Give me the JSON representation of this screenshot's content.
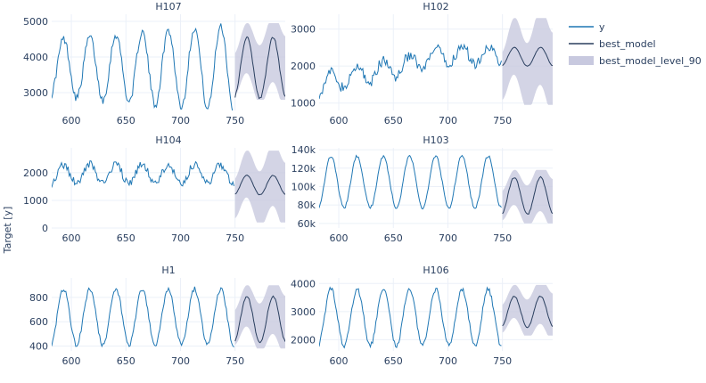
{
  "figure": {
    "ylabel": "Target [y]",
    "legend": [
      {
        "label": "y",
        "kind": "line",
        "color": "#1f77b4"
      },
      {
        "label": "best_model",
        "kind": "line",
        "color": "#2a3f5f"
      },
      {
        "label": "best_model_level_90",
        "kind": "band",
        "color": "#c8c9df"
      }
    ]
  },
  "chart_data": [
    {
      "type": "line",
      "title": "H107",
      "xlim": [
        582,
        796
      ],
      "ylim": [
        2500,
        5200
      ],
      "xticks": [
        600,
        650,
        700,
        750
      ],
      "yticks": [
        3000,
        4000,
        5000
      ],
      "ytick_labels": [
        "3000",
        "4000",
        "5000"
      ],
      "history": {
        "x_start": 582,
        "x_end": 749,
        "mid": 3700,
        "amp": 1000,
        "amp_growth": 0.45,
        "noise": 120
      },
      "forecast": {
        "x_start": 750,
        "x_end": 796,
        "mid": 3700,
        "amp": 850,
        "band_lo": 2800,
        "band_hi": 4950
      },
      "period": 24
    },
    {
      "type": "line",
      "title": "H102",
      "xlim": [
        582,
        796
      ],
      "ylim": [
        800,
        3400
      ],
      "xticks": [
        600,
        650,
        700,
        750
      ],
      "yticks": [
        1000,
        2000,
        3000
      ],
      "ytick_labels": [
        "1000",
        "2000",
        "3000"
      ],
      "history": {
        "x_start": 582,
        "x_end": 749,
        "mid": 1500,
        "amp": 250,
        "trend_end": 2300,
        "noise": 150
      },
      "forecast": {
        "x_start": 750,
        "x_end": 796,
        "mid": 2250,
        "amp": 250,
        "band_lo": 950,
        "band_hi": 3300
      },
      "period": 24
    },
    {
      "type": "line",
      "title": "H104",
      "xlim": [
        582,
        796
      ],
      "ylim": [
        0,
        2900
      ],
      "xticks": [
        600,
        650,
        700,
        750
      ],
      "yticks": [
        0,
        1000,
        2000
      ],
      "ytick_labels": [
        "0",
        "1000",
        "2000"
      ],
      "history": {
        "x_start": 582,
        "x_end": 749,
        "mid": 1950,
        "amp": 350,
        "noise": 150
      },
      "forecast": {
        "x_start": 750,
        "x_end": 796,
        "mid": 1550,
        "amp": 350,
        "band_lo": 200,
        "band_hi": 2800
      },
      "period": 24
    },
    {
      "type": "line",
      "title": "H103",
      "xlim": [
        582,
        796
      ],
      "ylim": [
        55000,
        142000
      ],
      "xticks": [
        600,
        650,
        700,
        750
      ],
      "yticks": [
        60000,
        80000,
        100000,
        120000,
        140000
      ],
      "ytick_labels": [
        "60k",
        "80k",
        "100k",
        "120k",
        "140k"
      ],
      "history": {
        "x_start": 582,
        "x_end": 749,
        "mid": 105000,
        "amp": 28000,
        "noise": 1500
      },
      "forecast": {
        "x_start": 750,
        "x_end": 796,
        "mid": 90000,
        "amp": 20000,
        "band_lo": 60000,
        "band_hi": 118000
      },
      "period": 24
    },
    {
      "type": "line",
      "title": "H1",
      "xlim": [
        582,
        796
      ],
      "ylim": [
        360,
        960
      ],
      "xticks": [
        600,
        650,
        700,
        750
      ],
      "yticks": [
        400,
        600,
        800
      ],
      "ytick_labels": [
        "400",
        "600",
        "800"
      ],
      "history": {
        "x_start": 582,
        "x_end": 749,
        "mid": 640,
        "amp": 230,
        "noise": 20
      },
      "forecast": {
        "x_start": 750,
        "x_end": 796,
        "mid": 620,
        "amp": 190,
        "band_lo": 380,
        "band_hi": 900
      },
      "period": 24
    },
    {
      "type": "line",
      "title": "H106",
      "xlim": [
        582,
        796
      ],
      "ylim": [
        1600,
        4200
      ],
      "xticks": [
        600,
        650,
        700,
        750
      ],
      "yticks": [
        2000,
        3000,
        4000
      ],
      "ytick_labels": [
        "2000",
        "3000",
        "4000"
      ],
      "history": {
        "x_start": 582,
        "x_end": 749,
        "mid": 2800,
        "amp": 1000,
        "noise": 90
      },
      "forecast": {
        "x_start": 750,
        "x_end": 796,
        "mid": 3000,
        "amp": 550,
        "band_lo": 2150,
        "band_hi": 3950
      },
      "period": 24
    }
  ]
}
